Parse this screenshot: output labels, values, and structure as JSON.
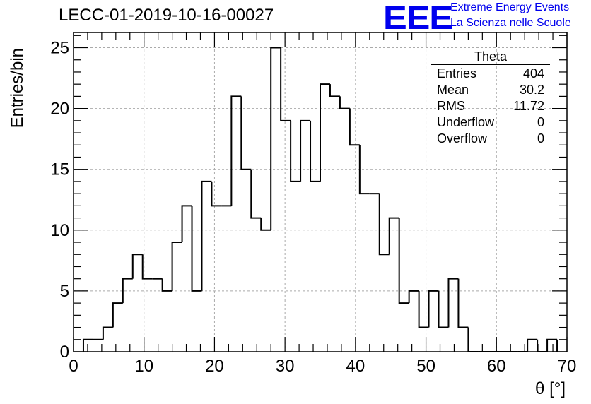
{
  "header": {
    "title": "LECC-01-2019-10-16-00027"
  },
  "logo": {
    "mark": "EEE",
    "line1": "Extreme Energy Events",
    "line2": "La Scienza nelle Scuole"
  },
  "stats_box": {
    "title": "Theta",
    "rows": [
      {
        "label": "Entries",
        "value": "404"
      },
      {
        "label": "Mean",
        "value": "30.2"
      },
      {
        "label": "RMS",
        "value": "11.72"
      },
      {
        "label": "Underflow",
        "value": "0"
      },
      {
        "label": "Overflow",
        "value": "0"
      }
    ]
  },
  "chart_data": {
    "type": "bar",
    "histogram": true,
    "title": "LECC-01-2019-10-16-00027",
    "xlabel": "θ [°]",
    "ylabel": "Entries/bin",
    "xlim": [
      0,
      70
    ],
    "ylim": [
      0,
      26.25
    ],
    "bin_width": 1.4,
    "bin_start": 1.4,
    "values": [
      1,
      1,
      2,
      4,
      6,
      8,
      6,
      6,
      5,
      9,
      12,
      5,
      14,
      12,
      12,
      21,
      15,
      11,
      10,
      25,
      19,
      14,
      19,
      14,
      22,
      21,
      20,
      17,
      13,
      13,
      8,
      11,
      4,
      5,
      2,
      5,
      2,
      6,
      2,
      0,
      0,
      0,
      0,
      0,
      0,
      1,
      0,
      1
    ],
    "x_ticks": [
      0,
      10,
      20,
      30,
      40,
      50,
      60,
      70
    ],
    "y_ticks": [
      0,
      5,
      10,
      15,
      20,
      25
    ],
    "grid": true,
    "line_color": "#000000",
    "grid_color": "#aaaaaa"
  }
}
